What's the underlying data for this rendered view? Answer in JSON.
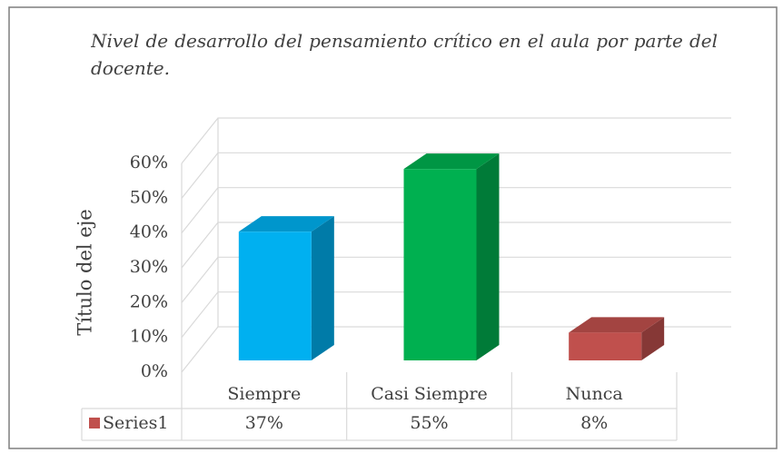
{
  "chart_data": {
    "type": "bar3d",
    "title": "Nivel de desarrollo del pensamiento crítico en el aula por parte del docente.",
    "y_axis_title": "Título del eje",
    "categories": [
      "Siempre",
      "Casi Siempre",
      "Nunca"
    ],
    "series": [
      {
        "name": "Series1",
        "color": "#c0504d",
        "values": [
          37,
          55,
          8
        ],
        "value_labels": [
          "37%",
          "55%",
          "8%"
        ],
        "bar_colors": [
          "#00b0f0",
          "#00b050",
          "#c0504d"
        ]
      }
    ],
    "ylim": [
      0,
      60
    ],
    "yticks": [
      {
        "value": 0,
        "label": "0%"
      },
      {
        "value": 10,
        "label": "10%"
      },
      {
        "value": 20,
        "label": "20%"
      },
      {
        "value": 30,
        "label": "30%"
      },
      {
        "value": 40,
        "label": "40%"
      },
      {
        "value": 50,
        "label": "50%"
      },
      {
        "value": 60,
        "label": "60%"
      }
    ],
    "grid": true,
    "data_table": true
  }
}
